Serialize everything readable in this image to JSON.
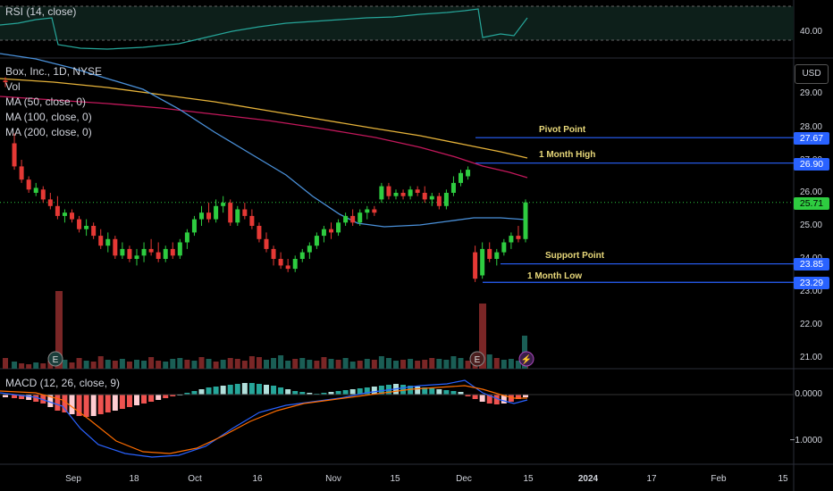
{
  "symbol_title": "Box, Inc., 1D, NYSE",
  "indicators": {
    "rsi_label": "RSI (14, close)",
    "vol_label": "Vol",
    "ma50_label": "MA (50, close, 0)",
    "ma100_label": "MA (100, close, 0)",
    "ma200_label": "MA (200, close, 0)",
    "macd_label": "MACD (12, 26, close, 9)"
  },
  "currency_button": "USD",
  "rsi_axis": [
    "40.00"
  ],
  "price_axis": [
    "29.00",
    "28.00",
    "27.00",
    "26.00",
    "25.00",
    "24.00",
    "23.00",
    "22.00",
    "21.00"
  ],
  "macd_axis": [
    "0.0000",
    "−1.0000"
  ],
  "x_labels": [
    "Sep",
    "18",
    "Oct",
    "16",
    "Nov",
    "15",
    "Dec",
    "15",
    "2024",
    "17",
    "Feb",
    "15"
  ],
  "levels": [
    {
      "name": "Pivot Point",
      "price": 27.67,
      "tag": "27.67"
    },
    {
      "name": "1 Month High",
      "price": 26.9,
      "tag": "26.90"
    },
    {
      "name": "Support Point",
      "price": 23.85,
      "tag": "23.85"
    },
    {
      "name": "1 Month Low",
      "price": 23.29,
      "tag": "23.29"
    }
  ],
  "last_price": {
    "value": 25.71,
    "tag": "25.71"
  },
  "event_icons": [
    "E",
    "E",
    "⚡"
  ],
  "colors": {
    "up": "#26a69a",
    "down": "#ef5350",
    "up_candle": "#2ecc40",
    "down_candle": "#e53935",
    "ma50": "#4a90d9",
    "ma100": "#c2185b",
    "ma200": "#e6b33a",
    "level": "#2962ff",
    "rsi": "#26a69a",
    "macd": "#2962ff",
    "signal": "#ff6d00"
  },
  "chart_data": {
    "type": "candlestick",
    "x_axis": "date",
    "y_unit": "USD",
    "candles": [
      {
        "d": "Aug-29",
        "o": 29.4,
        "h": 29.5,
        "l": 29.2,
        "c": 29.35
      },
      {
        "d": "Aug-31",
        "o": 27.5,
        "h": 27.8,
        "l": 26.7,
        "c": 26.8
      },
      {
        "d": "Sep-01",
        "o": 26.8,
        "h": 27.0,
        "l": 26.3,
        "c": 26.4
      },
      {
        "d": "Sep-05",
        "o": 26.4,
        "h": 26.5,
        "l": 26.0,
        "c": 26.1
      },
      {
        "d": "Sep-06",
        "o": 26.0,
        "h": 26.3,
        "l": 25.9,
        "c": 26.15
      },
      {
        "d": "Sep-07",
        "o": 26.1,
        "h": 26.2,
        "l": 25.7,
        "c": 25.8
      },
      {
        "d": "Sep-08",
        "o": 25.8,
        "h": 26.0,
        "l": 25.5,
        "c": 25.6
      },
      {
        "d": "Sep-11",
        "o": 25.6,
        "h": 25.9,
        "l": 25.2,
        "c": 25.3
      },
      {
        "d": "Sep-12",
        "o": 25.3,
        "h": 25.5,
        "l": 25.1,
        "c": 25.4
      },
      {
        "d": "Sep-13",
        "o": 25.4,
        "h": 25.5,
        "l": 25.1,
        "c": 25.2
      },
      {
        "d": "Sep-14",
        "o": 25.2,
        "h": 25.3,
        "l": 24.8,
        "c": 24.9
      },
      {
        "d": "Sep-15",
        "o": 24.9,
        "h": 25.2,
        "l": 24.7,
        "c": 25.0
      },
      {
        "d": "Sep-18",
        "o": 25.0,
        "h": 25.1,
        "l": 24.6,
        "c": 24.7
      },
      {
        "d": "Sep-19",
        "o": 24.7,
        "h": 24.9,
        "l": 24.3,
        "c": 24.4
      },
      {
        "d": "Sep-20",
        "o": 24.4,
        "h": 24.8,
        "l": 24.2,
        "c": 24.6
      },
      {
        "d": "Sep-21",
        "o": 24.6,
        "h": 24.7,
        "l": 24.0,
        "c": 24.1
      },
      {
        "d": "Sep-22",
        "o": 24.1,
        "h": 24.5,
        "l": 24.0,
        "c": 24.3
      },
      {
        "d": "Sep-25",
        "o": 24.3,
        "h": 24.4,
        "l": 23.9,
        "c": 24.0
      },
      {
        "d": "Sep-26",
        "o": 24.0,
        "h": 24.3,
        "l": 23.8,
        "c": 24.1
      },
      {
        "d": "Sep-27",
        "o": 24.1,
        "h": 24.5,
        "l": 23.9,
        "c": 24.3
      },
      {
        "d": "Sep-28",
        "o": 24.3,
        "h": 24.6,
        "l": 24.1,
        "c": 24.2
      },
      {
        "d": "Sep-29",
        "o": 24.2,
        "h": 24.5,
        "l": 23.9,
        "c": 24.0
      },
      {
        "d": "Oct-02",
        "o": 24.0,
        "h": 24.4,
        "l": 23.9,
        "c": 24.3
      },
      {
        "d": "Oct-03",
        "o": 24.3,
        "h": 24.5,
        "l": 24.0,
        "c": 24.1
      },
      {
        "d": "Oct-04",
        "o": 24.1,
        "h": 24.6,
        "l": 24.0,
        "c": 24.5
      },
      {
        "d": "Oct-05",
        "o": 24.5,
        "h": 24.9,
        "l": 24.3,
        "c": 24.8
      },
      {
        "d": "Oct-06",
        "o": 24.8,
        "h": 25.3,
        "l": 24.7,
        "c": 25.2
      },
      {
        "d": "Oct-09",
        "o": 25.2,
        "h": 25.6,
        "l": 25.0,
        "c": 25.4
      },
      {
        "d": "Oct-10",
        "o": 25.4,
        "h": 25.7,
        "l": 25.1,
        "c": 25.2
      },
      {
        "d": "Oct-11",
        "o": 25.2,
        "h": 25.8,
        "l": 25.1,
        "c": 25.6
      },
      {
        "d": "Oct-12",
        "o": 25.6,
        "h": 25.9,
        "l": 25.4,
        "c": 25.7
      },
      {
        "d": "Oct-13",
        "o": 25.7,
        "h": 25.8,
        "l": 25.0,
        "c": 25.1
      },
      {
        "d": "Oct-16",
        "o": 25.1,
        "h": 25.6,
        "l": 25.0,
        "c": 25.5
      },
      {
        "d": "Oct-17",
        "o": 25.5,
        "h": 25.7,
        "l": 25.2,
        "c": 25.3
      },
      {
        "d": "Oct-18",
        "o": 25.3,
        "h": 25.5,
        "l": 24.9,
        "c": 25.0
      },
      {
        "d": "Oct-19",
        "o": 25.0,
        "h": 25.1,
        "l": 24.5,
        "c": 24.6
      },
      {
        "d": "Oct-20",
        "o": 24.6,
        "h": 24.8,
        "l": 24.2,
        "c": 24.3
      },
      {
        "d": "Oct-23",
        "o": 24.3,
        "h": 24.4,
        "l": 23.8,
        "c": 24.0
      },
      {
        "d": "Oct-24",
        "o": 24.0,
        "h": 24.2,
        "l": 23.7,
        "c": 23.8
      },
      {
        "d": "Oct-25",
        "o": 23.8,
        "h": 24.0,
        "l": 23.6,
        "c": 23.7
      },
      {
        "d": "Oct-26",
        "o": 23.7,
        "h": 24.1,
        "l": 23.6,
        "c": 24.0
      },
      {
        "d": "Oct-27",
        "o": 24.0,
        "h": 24.3,
        "l": 23.9,
        "c": 24.2
      },
      {
        "d": "Oct-30",
        "o": 24.2,
        "h": 24.5,
        "l": 24.0,
        "c": 24.4
      },
      {
        "d": "Oct-31",
        "o": 24.4,
        "h": 24.8,
        "l": 24.3,
        "c": 24.7
      },
      {
        "d": "Nov-01",
        "o": 24.7,
        "h": 25.0,
        "l": 24.5,
        "c": 24.9
      },
      {
        "d": "Nov-02",
        "o": 24.9,
        "h": 25.1,
        "l": 24.6,
        "c": 24.8
      },
      {
        "d": "Nov-03",
        "o": 24.8,
        "h": 25.2,
        "l": 24.7,
        "c": 25.1
      },
      {
        "d": "Nov-06",
        "o": 25.1,
        "h": 25.4,
        "l": 25.0,
        "c": 25.3
      },
      {
        "d": "Nov-07",
        "o": 25.3,
        "h": 25.5,
        "l": 25.0,
        "c": 25.1
      },
      {
        "d": "Nov-08",
        "o": 25.1,
        "h": 25.5,
        "l": 25.0,
        "c": 25.4
      },
      {
        "d": "Nov-09",
        "o": 25.4,
        "h": 25.6,
        "l": 25.2,
        "c": 25.5
      },
      {
        "d": "Nov-10",
        "o": 25.5,
        "h": 25.6,
        "l": 25.3,
        "c": 25.4
      },
      {
        "d": "Nov-13",
        "o": 25.8,
        "h": 26.3,
        "l": 25.7,
        "c": 26.2
      },
      {
        "d": "Nov-14",
        "o": 26.2,
        "h": 26.3,
        "l": 25.8,
        "c": 25.9
      },
      {
        "d": "Nov-15",
        "o": 25.9,
        "h": 26.1,
        "l": 25.8,
        "c": 26.0
      },
      {
        "d": "Nov-16",
        "o": 26.0,
        "h": 26.1,
        "l": 25.8,
        "c": 25.9
      },
      {
        "d": "Nov-17",
        "o": 25.9,
        "h": 26.2,
        "l": 25.8,
        "c": 26.1
      },
      {
        "d": "Nov-20",
        "o": 26.1,
        "h": 26.2,
        "l": 25.9,
        "c": 26.0
      },
      {
        "d": "Nov-21",
        "o": 26.0,
        "h": 26.2,
        "l": 25.7,
        "c": 25.8
      },
      {
        "d": "Nov-22",
        "o": 25.8,
        "h": 26.0,
        "l": 25.6,
        "c": 25.9
      },
      {
        "d": "Nov-24",
        "o": 25.9,
        "h": 26.0,
        "l": 25.5,
        "c": 25.6
      },
      {
        "d": "Nov-27",
        "o": 25.6,
        "h": 26.1,
        "l": 25.5,
        "c": 26.0
      },
      {
        "d": "Nov-28",
        "o": 26.0,
        "h": 26.5,
        "l": 25.9,
        "c": 26.3
      },
      {
        "d": "Nov-29",
        "o": 26.3,
        "h": 26.7,
        "l": 26.2,
        "c": 26.6
      },
      {
        "d": "Nov-30",
        "o": 26.5,
        "h": 26.8,
        "l": 26.4,
        "c": 26.7
      },
      {
        "d": "Dec-06",
        "o": 24.2,
        "h": 24.4,
        "l": 23.3,
        "c": 23.4
      },
      {
        "d": "Dec-07",
        "o": 23.5,
        "h": 24.5,
        "l": 23.4,
        "c": 24.3
      },
      {
        "d": "Dec-08",
        "o": 24.3,
        "h": 24.5,
        "l": 23.9,
        "c": 24.0
      },
      {
        "d": "Dec-11",
        "o": 24.0,
        "h": 24.3,
        "l": 23.8,
        "c": 24.2
      },
      {
        "d": "Dec-12",
        "o": 24.2,
        "h": 24.6,
        "l": 24.1,
        "c": 24.5
      },
      {
        "d": "Dec-13",
        "o": 24.5,
        "h": 24.8,
        "l": 24.3,
        "c": 24.7
      },
      {
        "d": "Dec-14",
        "o": 24.7,
        "h": 25.0,
        "l": 24.5,
        "c": 24.6
      },
      {
        "d": "Dec-15",
        "o": 24.6,
        "h": 25.8,
        "l": 24.5,
        "c": 25.71
      }
    ]
  }
}
